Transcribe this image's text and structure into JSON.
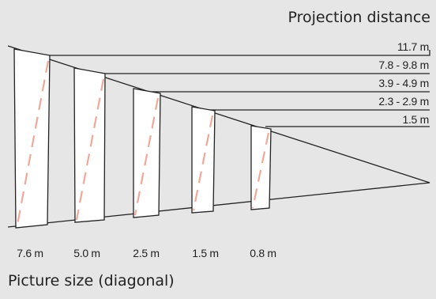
{
  "titles": {
    "projection_distance": "Projection distance",
    "picture_size": "Picture size (diagonal)"
  },
  "distances": [
    "11.7 m",
    "7.8 - 9.8 m",
    "3.9 - 4.9 m",
    "2.3 - 2.9 m",
    "1.5 m"
  ],
  "sizes": [
    "7.6 m",
    "5.0 m",
    "2.5 m",
    "1.5 m",
    "0.8 m"
  ],
  "colors": {
    "background": "#e6e6e6",
    "line": "#222222",
    "screen_fill": "#ffffff",
    "diagonal_dash": "#f0a898"
  }
}
